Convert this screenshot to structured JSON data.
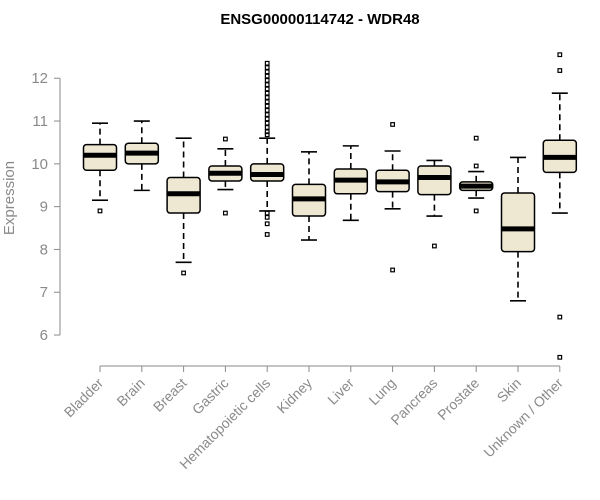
{
  "chart_data": {
    "type": "boxplot",
    "title": "ENSG00000114742 - WDR48",
    "xlabel": "",
    "ylabel": "Expression",
    "ylim": [
      5.3,
      12.8
    ],
    "yticks": [
      6,
      7,
      8,
      9,
      10,
      11,
      12
    ],
    "categories": [
      "Bladder",
      "Brain",
      "Breast",
      "Gastric",
      "Hematopoietic cells",
      "Kidney",
      "Liver",
      "Lung",
      "Pancreas",
      "Prostate",
      "Skin",
      "Unknown / Other"
    ],
    "boxes": [
      {
        "category": "Bladder",
        "whisker_low": 9.15,
        "q1": 9.85,
        "median": 10.2,
        "q3": 10.45,
        "whisker_high": 10.95,
        "outliers": [
          8.9
        ]
      },
      {
        "category": "Brain",
        "whisker_low": 9.38,
        "q1": 10.0,
        "median": 10.25,
        "q3": 10.48,
        "whisker_high": 11.0,
        "outliers": []
      },
      {
        "category": "Breast",
        "whisker_low": 7.7,
        "q1": 8.85,
        "median": 9.3,
        "q3": 9.68,
        "whisker_high": 10.6,
        "outliers": [
          7.45
        ]
      },
      {
        "category": "Gastric",
        "whisker_low": 9.4,
        "q1": 9.6,
        "median": 9.78,
        "q3": 9.95,
        "whisker_high": 10.35,
        "outliers": [
          10.58,
          8.85
        ]
      },
      {
        "category": "Hematopoietic cells",
        "whisker_low": 8.9,
        "q1": 9.6,
        "median": 9.75,
        "q3": 10.0,
        "whisker_high": 10.6,
        "outliers": [
          12.35,
          12.25,
          12.15,
          12.05,
          11.95,
          11.85,
          11.75,
          11.65,
          11.55,
          11.45,
          11.35,
          11.25,
          11.15,
          11.05,
          10.95,
          10.85,
          10.75,
          10.68,
          8.85,
          8.75,
          8.6,
          8.35
        ]
      },
      {
        "category": "Kidney",
        "whisker_low": 8.22,
        "q1": 8.78,
        "median": 9.18,
        "q3": 9.52,
        "whisker_high": 10.28,
        "outliers": []
      },
      {
        "category": "Liver",
        "whisker_low": 8.68,
        "q1": 9.3,
        "median": 9.62,
        "q3": 9.88,
        "whisker_high": 10.42,
        "outliers": []
      },
      {
        "category": "Lung",
        "whisker_low": 8.95,
        "q1": 9.35,
        "median": 9.58,
        "q3": 9.85,
        "whisker_high": 10.3,
        "outliers": [
          10.92,
          7.52
        ]
      },
      {
        "category": "Pancreas",
        "whisker_low": 8.78,
        "q1": 9.28,
        "median": 9.68,
        "q3": 9.95,
        "whisker_high": 10.08,
        "outliers": [
          8.08
        ]
      },
      {
        "category": "Prostate",
        "whisker_low": 9.2,
        "q1": 9.38,
        "median": 9.48,
        "q3": 9.58,
        "whisker_high": 9.82,
        "outliers": [
          10.6,
          9.95,
          8.9
        ]
      },
      {
        "category": "Skin",
        "whisker_low": 6.8,
        "q1": 7.95,
        "median": 8.48,
        "q3": 9.32,
        "whisker_high": 10.15,
        "outliers": []
      },
      {
        "category": "Unknown / Other",
        "whisker_low": 8.85,
        "q1": 9.8,
        "median": 10.15,
        "q3": 10.55,
        "whisker_high": 11.65,
        "outliers": [
          12.55,
          12.18,
          6.42,
          5.48
        ]
      }
    ],
    "colors": {
      "box_fill": "#eee8d2",
      "axis": "#8a8a8a"
    }
  }
}
